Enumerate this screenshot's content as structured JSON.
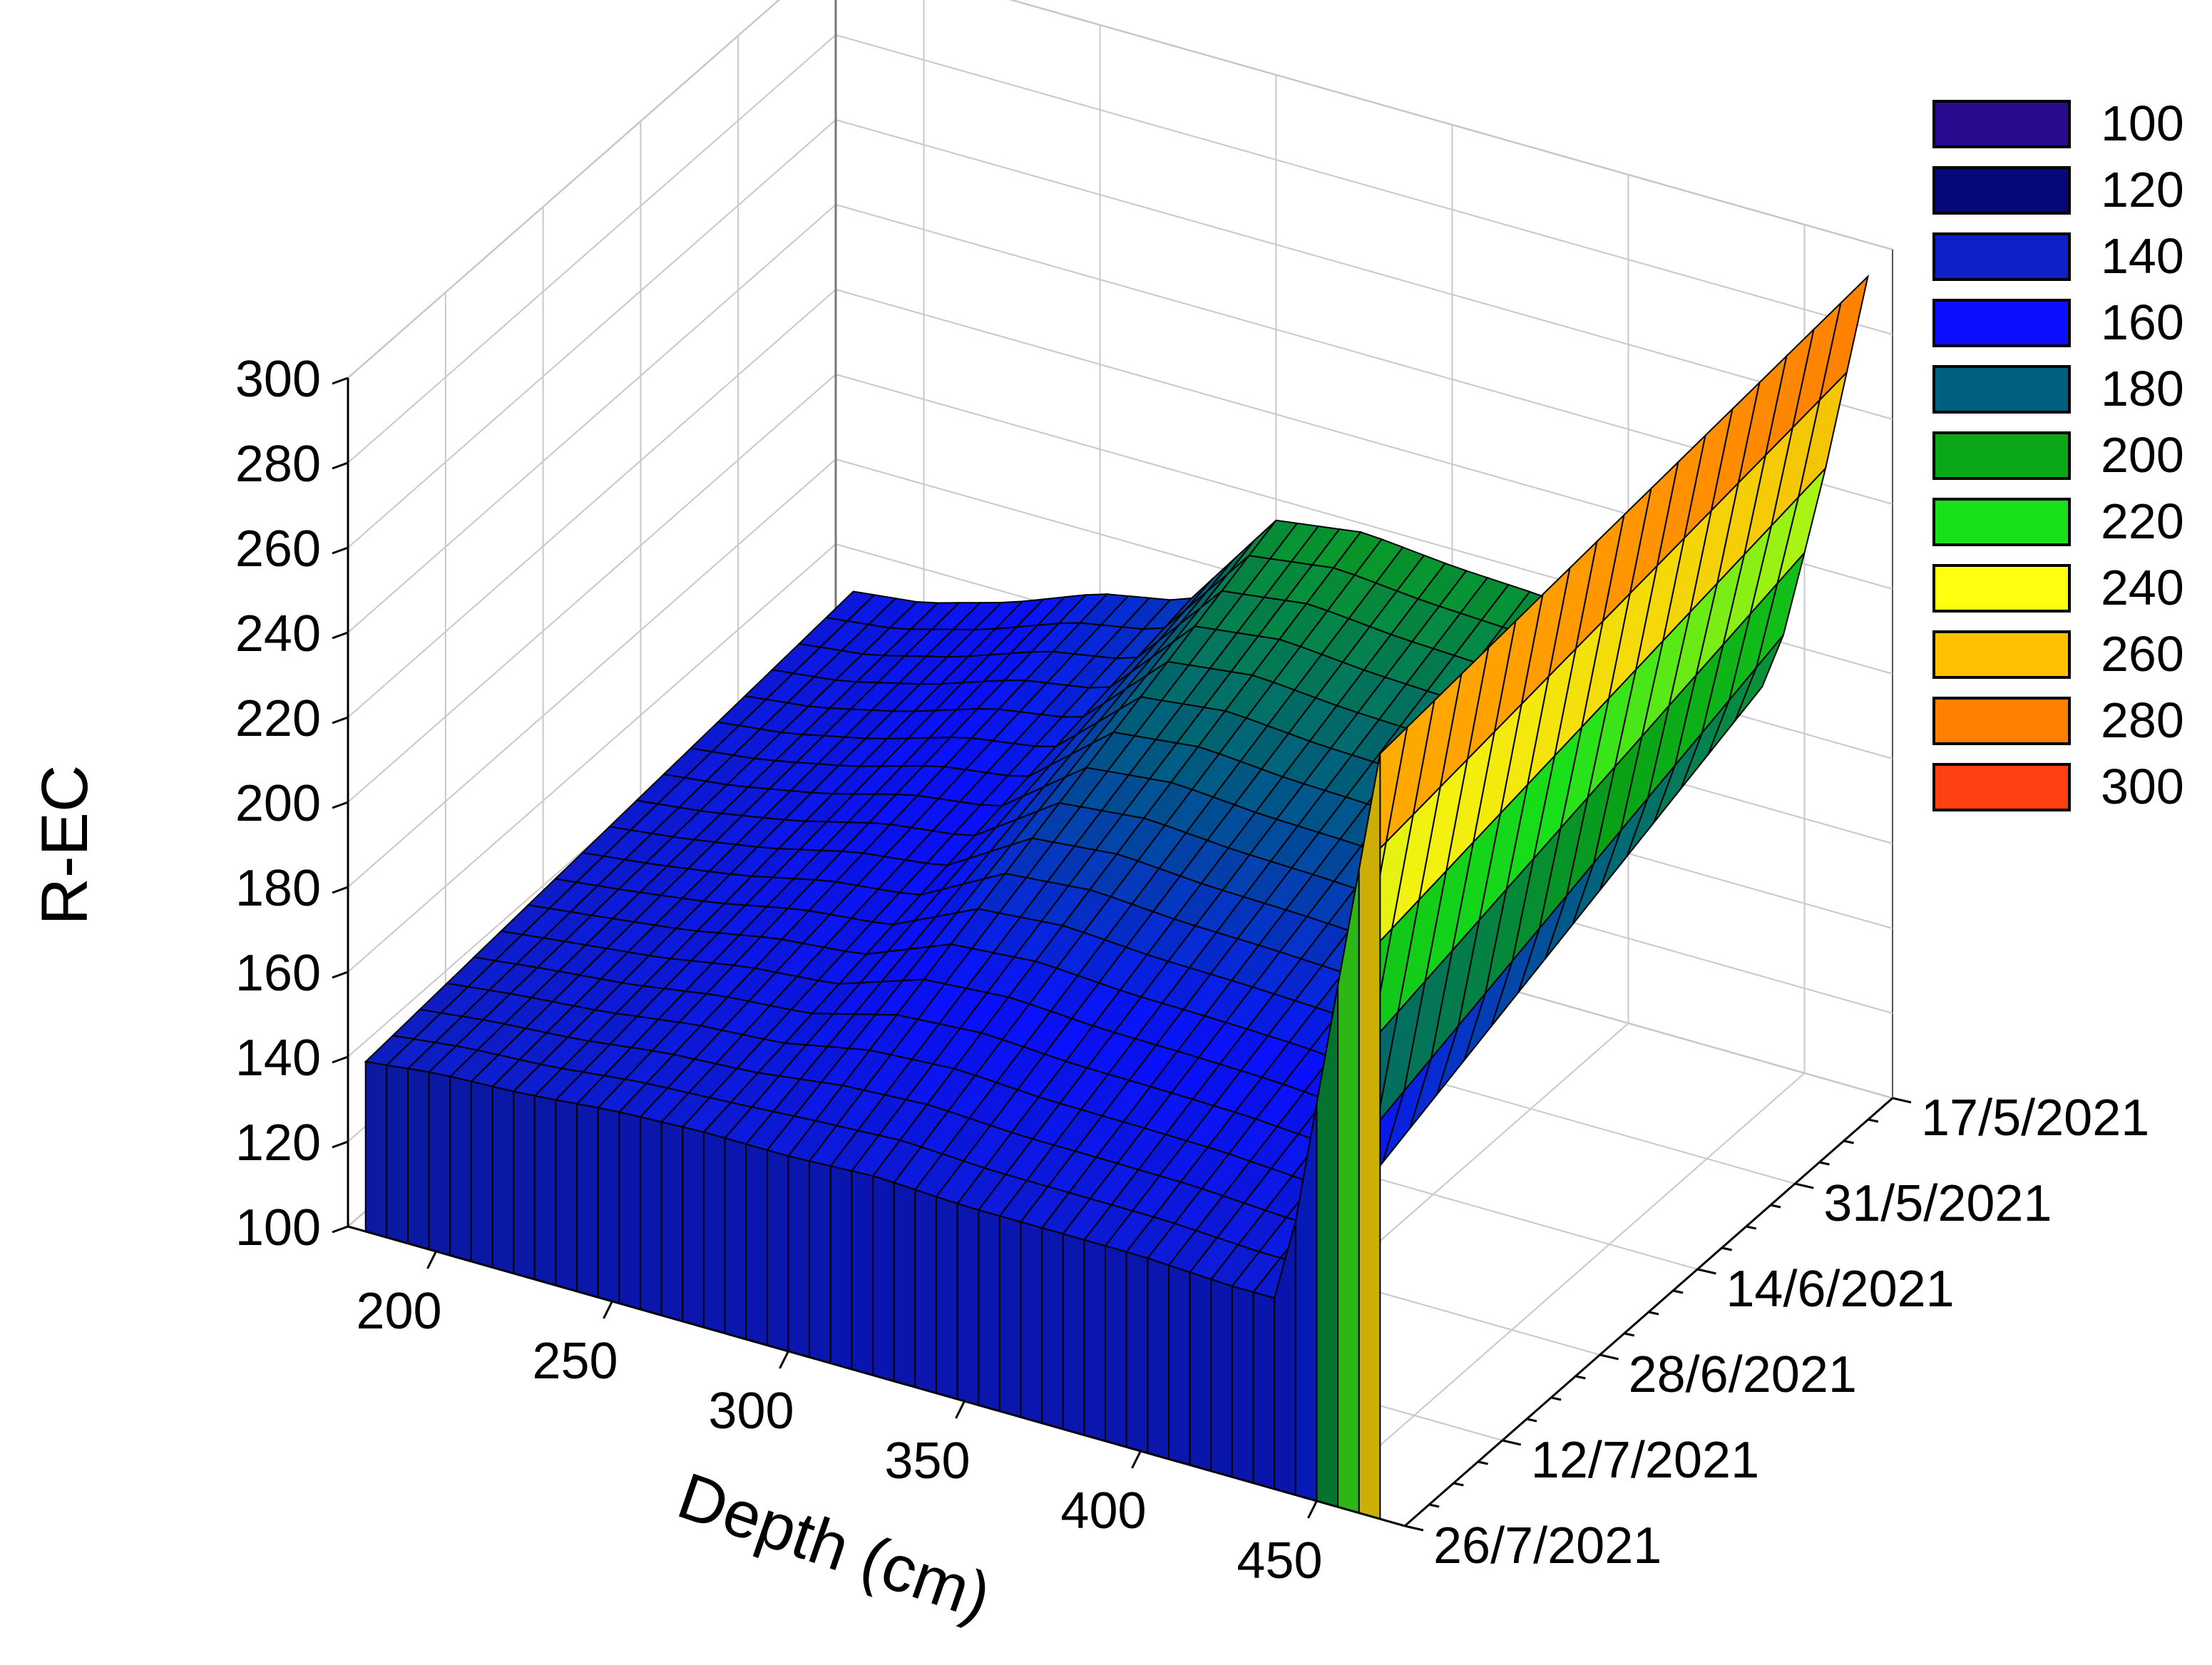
{
  "chart_data": {
    "type": "surface3d",
    "title": "",
    "zlabel": "R-EC",
    "xlabel": "Depth (cm)",
    "ylabel": "",
    "x_ticks": [
      "200",
      "250",
      "300",
      "350",
      "400",
      "450"
    ],
    "x_range": [
      175,
      475
    ],
    "y_ticks": [
      "17/5/2021",
      "31/5/2021",
      "14/6/2021",
      "28/6/2021",
      "12/7/2021",
      "26/7/2021"
    ],
    "z_ticks": [
      "100",
      "120",
      "140",
      "160",
      "180",
      "200",
      "220",
      "240",
      "260",
      "280",
      "300"
    ],
    "z_range": [
      100,
      300
    ],
    "grid": true,
    "legend_position": "right",
    "legend": [
      {
        "label": "100",
        "color": "#2a0a8c"
      },
      {
        "label": "120",
        "color": "#06087a"
      },
      {
        "label": "140",
        "color": "#0e20c8"
      },
      {
        "label": "160",
        "color": "#0a10ff"
      },
      {
        "label": "180",
        "color": "#006080"
      },
      {
        "label": "200",
        "color": "#0aa818"
      },
      {
        "label": "220",
        "color": "#18e01a"
      },
      {
        "label": "240",
        "color": "#ffff10"
      },
      {
        "label": "260",
        "color": "#ffc000"
      },
      {
        "label": "280",
        "color": "#ff8000"
      },
      {
        "label": "300",
        "color": "#ff4010"
      }
    ],
    "surface_profile": {
      "depth_cm": [
        180,
        200,
        225,
        250,
        275,
        300,
        325,
        350,
        375,
        400,
        425,
        440,
        455,
        470
      ],
      "r_ec_first_date": [
        150,
        152,
        158,
        166,
        170,
        195,
        198,
        196,
        195,
        193,
        190,
        188,
        240,
        300
      ],
      "r_ec_last_date": [
        140,
        142,
        143,
        145,
        146,
        146,
        147,
        146,
        146,
        146,
        145,
        145,
        218,
        290
      ]
    }
  }
}
